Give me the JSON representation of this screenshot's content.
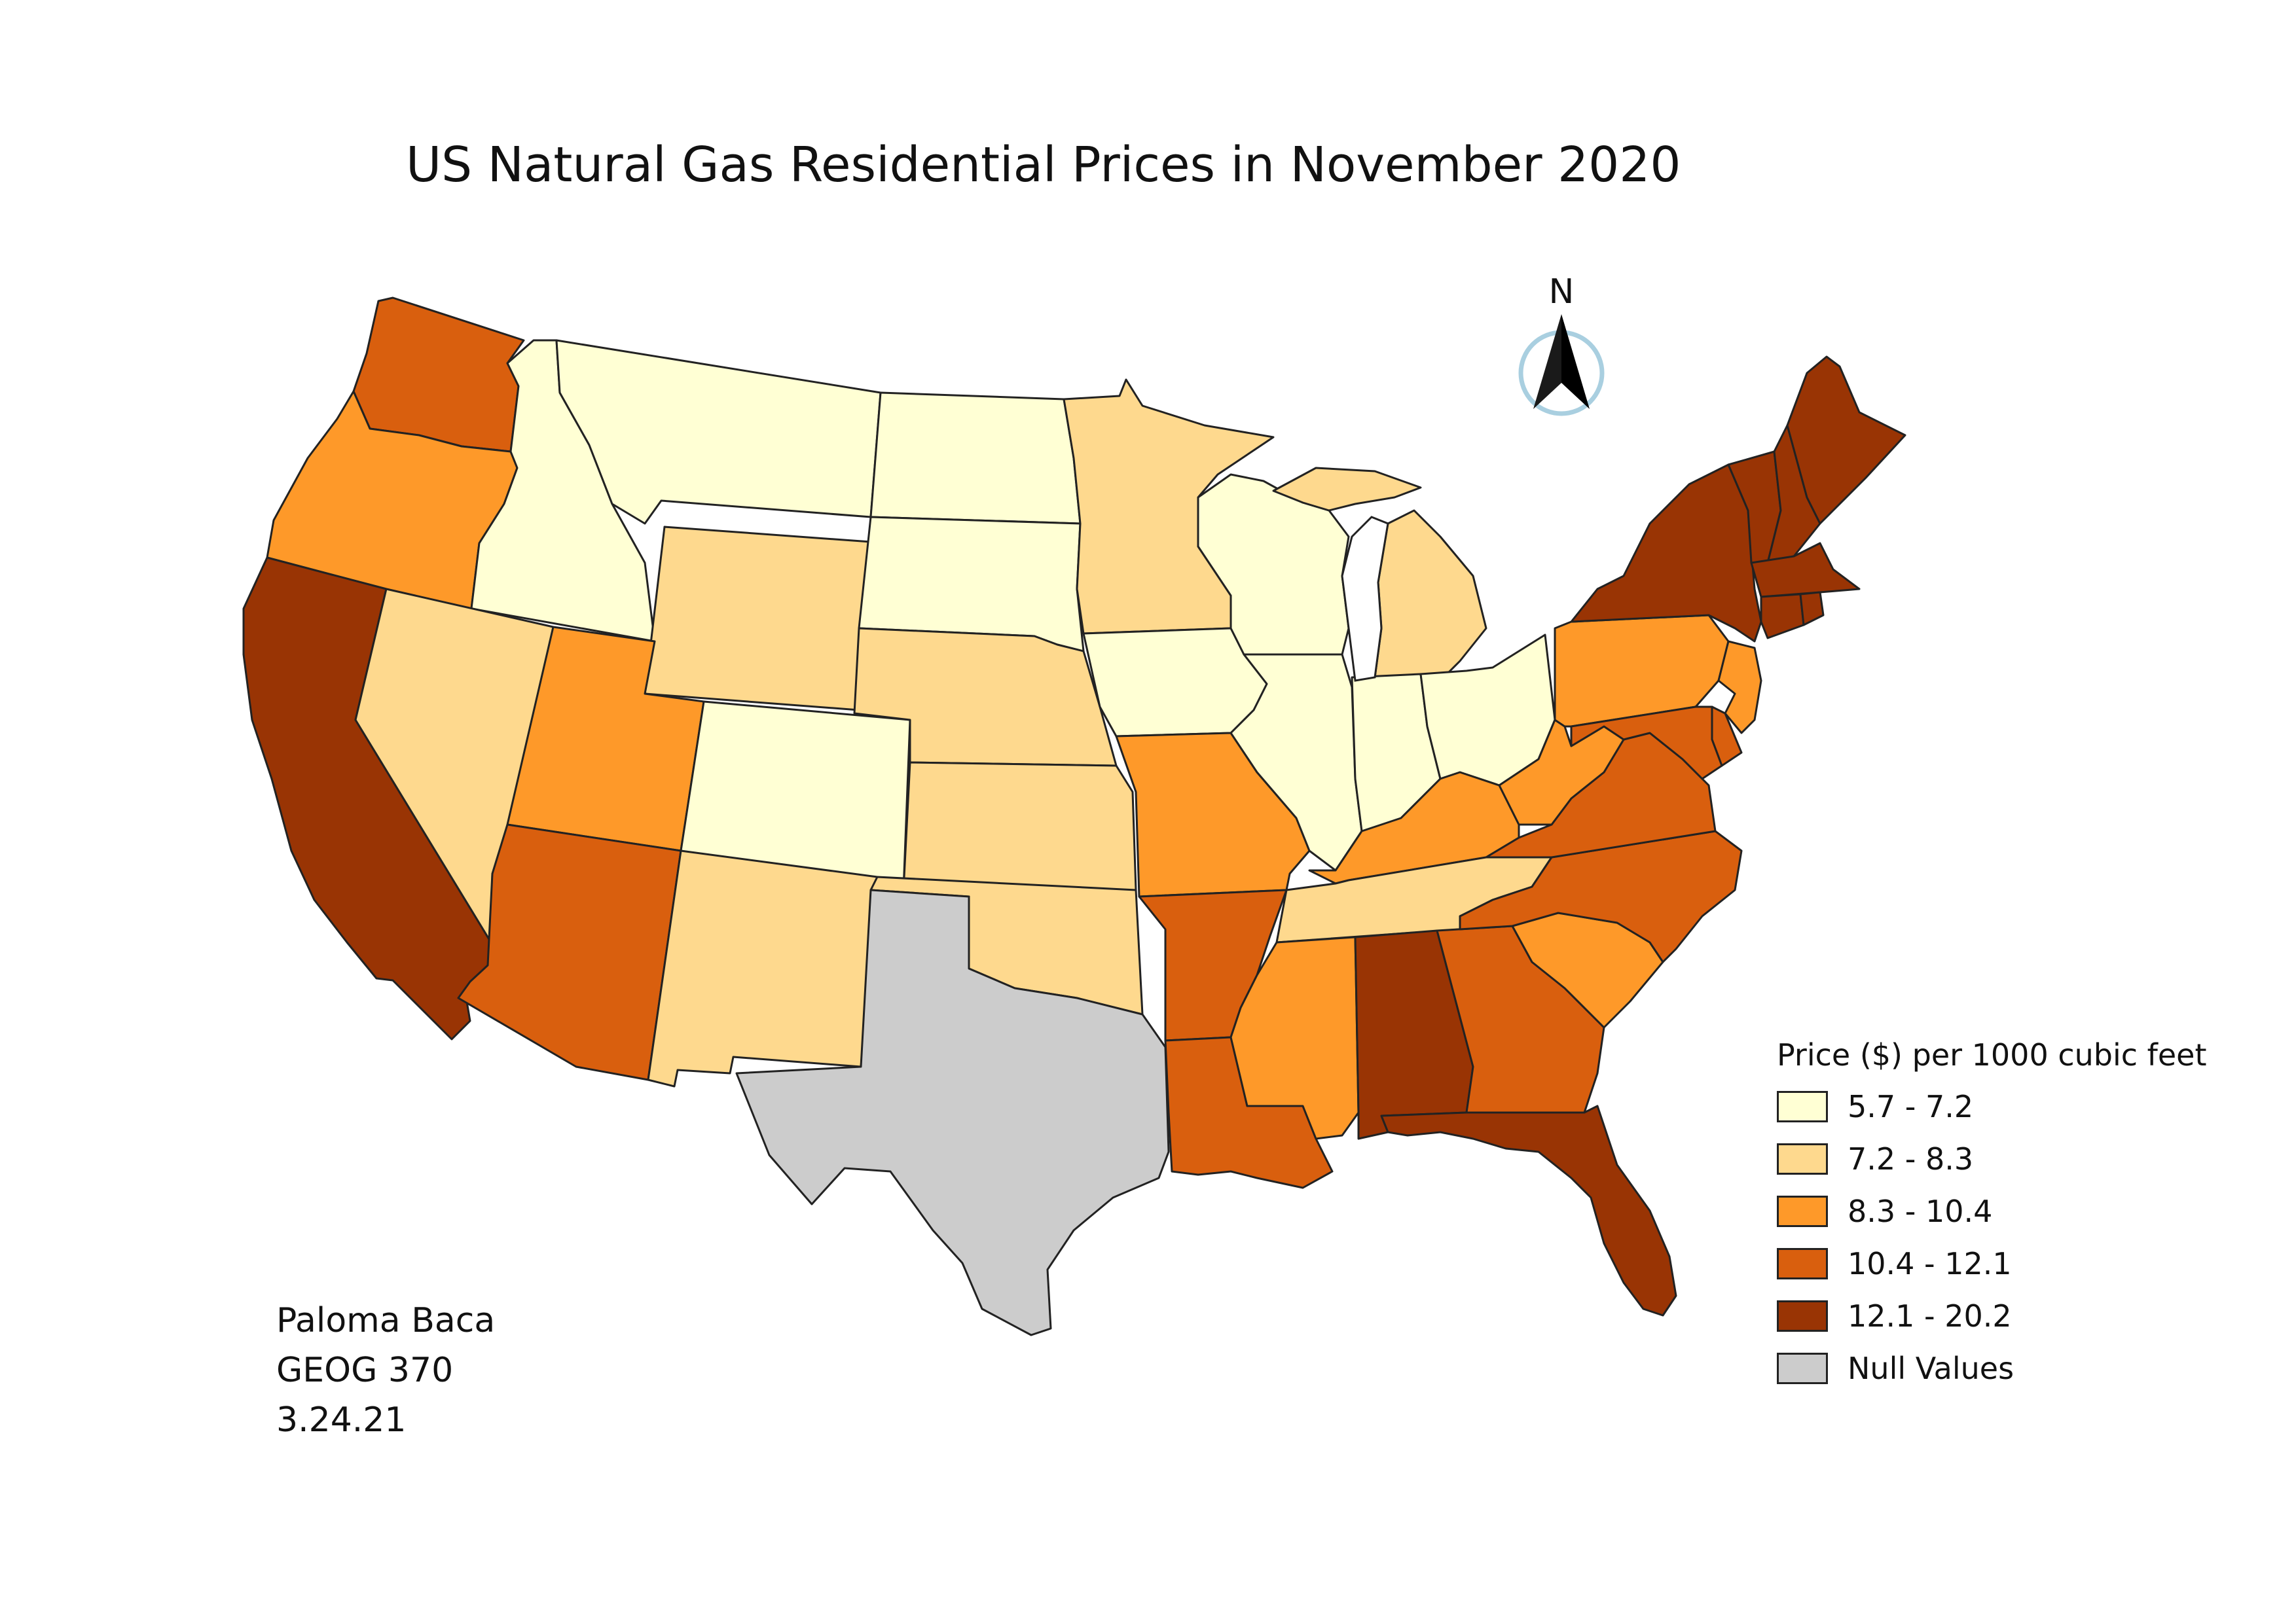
{
  "title": "US Natural Gas Residential Prices in November 2020",
  "north_label": "N",
  "legend": {
    "title": "Price ($) per 1000 cubic feet",
    "classes": [
      {
        "label": "5.7 - 7.2",
        "color": "#ffffd4"
      },
      {
        "label": "7.2 - 8.3",
        "color": "#fed98e"
      },
      {
        "label": "8.3 - 10.4",
        "color": "#fe9929"
      },
      {
        "label": "10.4 - 12.1",
        "color": "#d95f0e"
      },
      {
        "label": "12.1 - 20.2",
        "color": "#993404"
      },
      {
        "label": "Null Values",
        "color": "#cccccc"
      }
    ]
  },
  "credits": {
    "author": "Paloma Baca",
    "course": "GEOG 370",
    "date": "3.24.21"
  },
  "states": [
    {
      "name": "WA",
      "class": 3
    },
    {
      "name": "OR",
      "class": 2
    },
    {
      "name": "CA",
      "class": 4
    },
    {
      "name": "ID",
      "class": 0
    },
    {
      "name": "NV",
      "class": 1
    },
    {
      "name": "MT",
      "class": 0
    },
    {
      "name": "WY",
      "class": 1
    },
    {
      "name": "UT",
      "class": 2
    },
    {
      "name": "AZ",
      "class": 3
    },
    {
      "name": "CO",
      "class": 0
    },
    {
      "name": "NM",
      "class": 1
    },
    {
      "name": "ND",
      "class": 0
    },
    {
      "name": "SD",
      "class": 0
    },
    {
      "name": "NE",
      "class": 1
    },
    {
      "name": "KS",
      "class": 1
    },
    {
      "name": "OK",
      "class": 1
    },
    {
      "name": "TX",
      "class": 5
    },
    {
      "name": "MN",
      "class": 1
    },
    {
      "name": "IA",
      "class": 0
    },
    {
      "name": "MO",
      "class": 2
    },
    {
      "name": "AR",
      "class": 3
    },
    {
      "name": "LA",
      "class": 3
    },
    {
      "name": "WI",
      "class": 0
    },
    {
      "name": "IL",
      "class": 0
    },
    {
      "name": "MI",
      "class": 1
    },
    {
      "name": "IN",
      "class": 0
    },
    {
      "name": "OH",
      "class": 0
    },
    {
      "name": "KY",
      "class": 2
    },
    {
      "name": "TN",
      "class": 1
    },
    {
      "name": "MS",
      "class": 2
    },
    {
      "name": "AL",
      "class": 4
    },
    {
      "name": "GA",
      "class": 3
    },
    {
      "name": "FL",
      "class": 4
    },
    {
      "name": "SC",
      "class": 2
    },
    {
      "name": "NC",
      "class": 3
    },
    {
      "name": "VA",
      "class": 3
    },
    {
      "name": "WV",
      "class": 2
    },
    {
      "name": "PA",
      "class": 2
    },
    {
      "name": "NY",
      "class": 4
    },
    {
      "name": "VT",
      "class": 4
    },
    {
      "name": "NH",
      "class": 4
    },
    {
      "name": "ME",
      "class": 4
    },
    {
      "name": "MA",
      "class": 4
    },
    {
      "name": "CT",
      "class": 4
    },
    {
      "name": "RI",
      "class": 4
    },
    {
      "name": "NJ",
      "class": 2
    },
    {
      "name": "DE",
      "class": 3
    },
    {
      "name": "MD",
      "class": 3
    }
  ]
}
